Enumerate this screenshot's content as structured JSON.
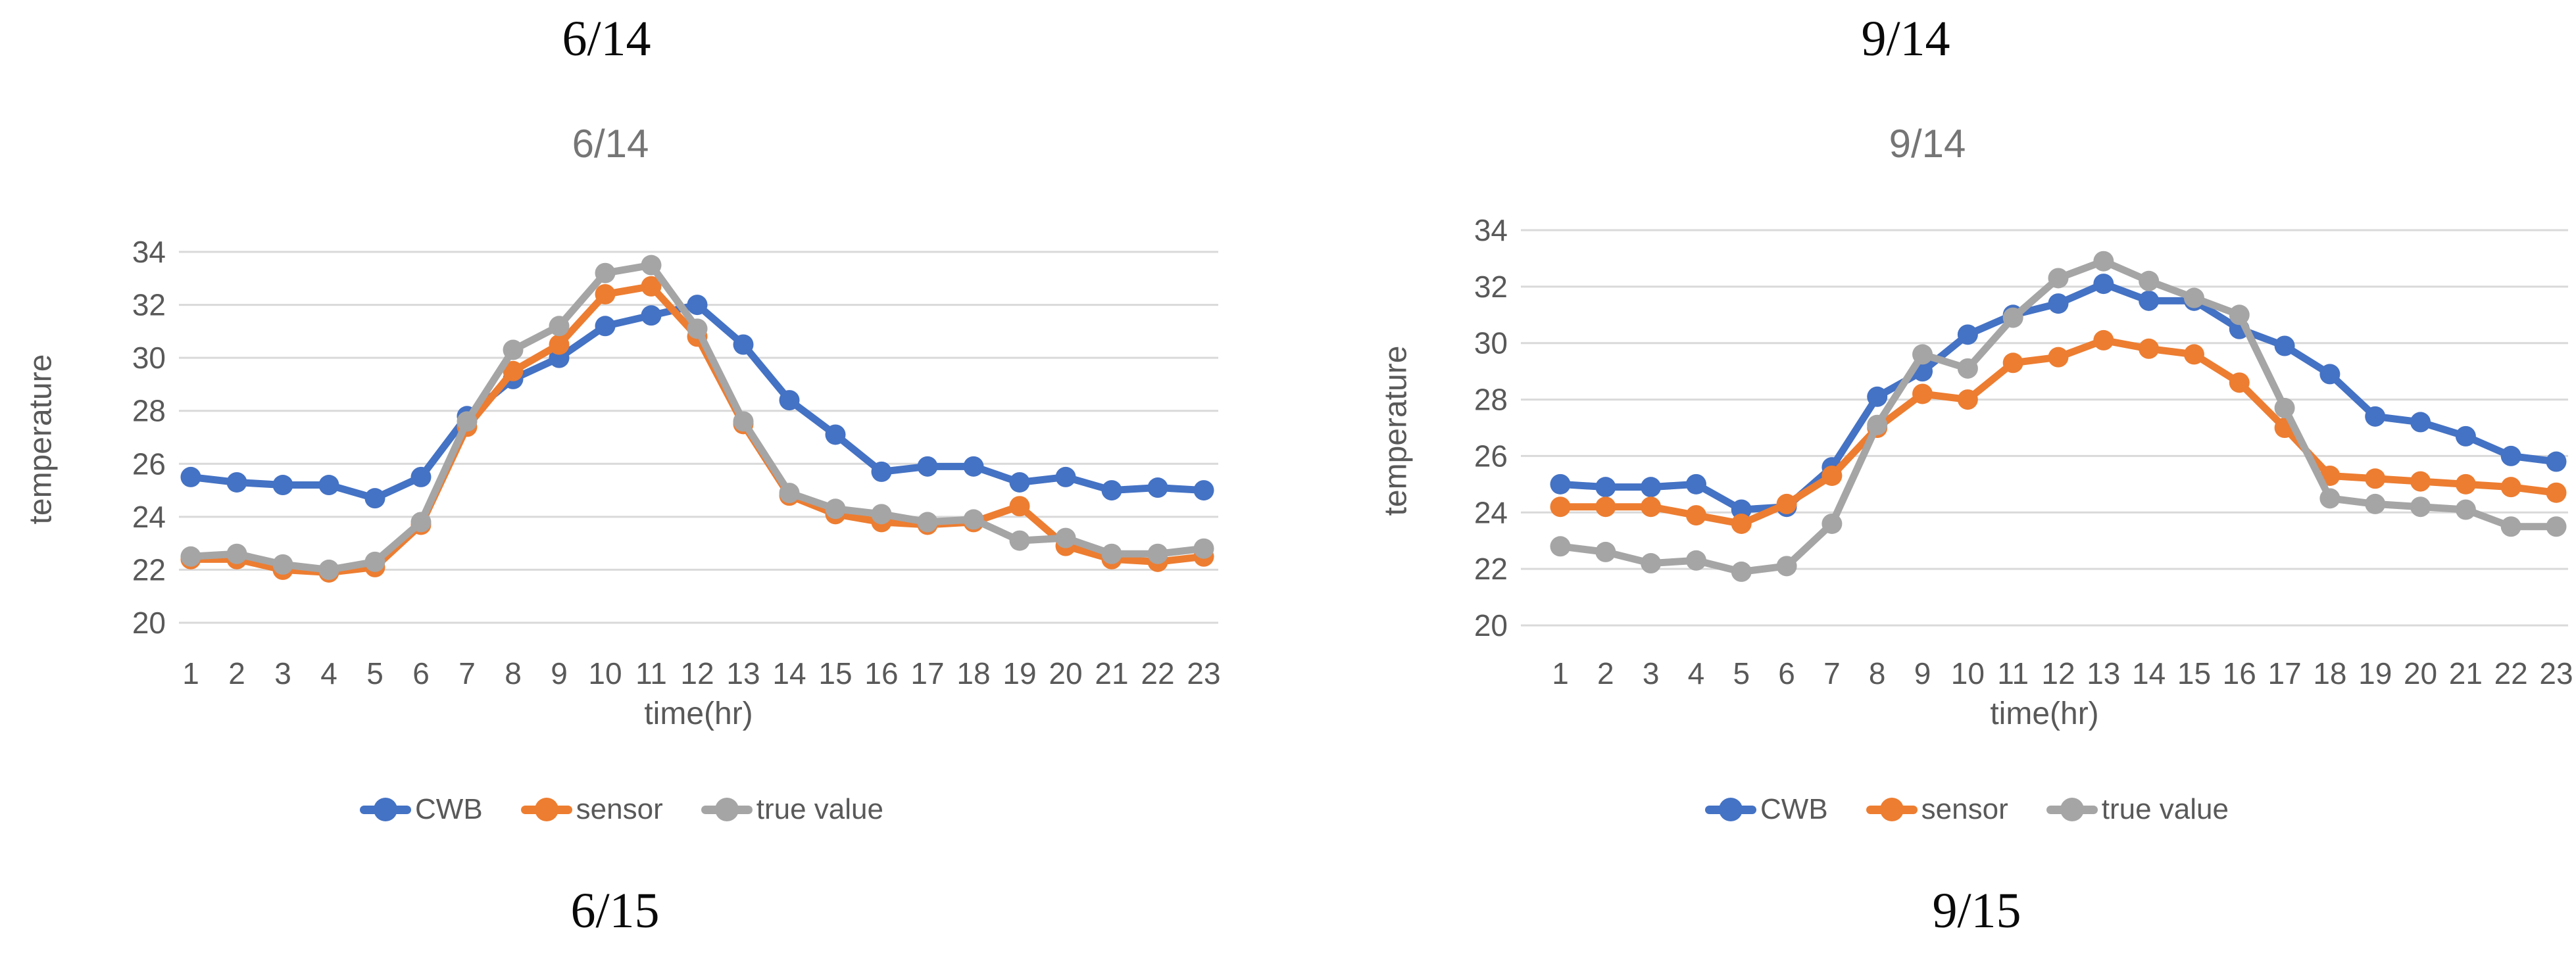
{
  "colors": {
    "cwb_blue": "#4472C4",
    "sensor_orange": "#ED7D31",
    "true_gray": "#A5A5A5",
    "gridline": "#D9D9D9",
    "tick_text": "#595959",
    "title_text": "#757575",
    "caption_text": "#0a0a0a"
  },
  "chart_data": [
    {
      "type": "line",
      "caption_top": "6/14",
      "title": "6/14",
      "xlabel": "time(hr)",
      "ylabel": "temperature",
      "caption_bottom": "6/15",
      "ylim": [
        20,
        34
      ],
      "yticks": [
        20,
        22,
        24,
        26,
        28,
        30,
        32,
        34
      ],
      "grid": true,
      "legend_position": "bottom",
      "x": [
        "1",
        "2",
        "3",
        "4",
        "5",
        "6",
        "7",
        "8",
        "9",
        "10",
        "11",
        "12",
        "13",
        "14",
        "15",
        "16",
        "17",
        "18",
        "19",
        "20",
        "21",
        "22",
        "23"
      ],
      "series": [
        {
          "name": "CWB",
          "color": "#4472C4",
          "values": [
            25.5,
            25.3,
            25.2,
            25.2,
            24.7,
            25.5,
            27.8,
            29.2,
            30.0,
            31.2,
            31.6,
            32.0,
            30.5,
            28.4,
            27.1,
            25.7,
            25.9,
            25.9,
            25.3,
            25.5,
            25.0,
            25.1,
            25.0
          ]
        },
        {
          "name": "sensor",
          "color": "#ED7D31",
          "values": [
            22.4,
            22.4,
            22.0,
            21.9,
            22.1,
            23.7,
            27.4,
            29.5,
            30.5,
            32.4,
            32.7,
            30.8,
            27.5,
            24.8,
            24.1,
            23.8,
            23.7,
            23.8,
            24.4,
            22.9,
            22.4,
            22.3,
            22.5
          ]
        },
        {
          "name": "true value",
          "color": "#A5A5A5",
          "values": [
            22.5,
            22.6,
            22.2,
            22.0,
            22.3,
            23.8,
            27.6,
            30.3,
            31.2,
            33.2,
            33.5,
            31.1,
            27.6,
            24.9,
            24.3,
            24.1,
            23.8,
            23.9,
            23.1,
            23.2,
            22.6,
            22.6,
            22.8
          ]
        }
      ]
    },
    {
      "type": "line",
      "caption_top": "9/14",
      "title": "9/14",
      "xlabel": "time(hr)",
      "ylabel": "temperature",
      "caption_bottom": "9/15",
      "ylim": [
        20,
        34
      ],
      "yticks": [
        20,
        22,
        24,
        26,
        28,
        30,
        32,
        34
      ],
      "grid": true,
      "legend_position": "bottom",
      "x": [
        "1",
        "2",
        "3",
        "4",
        "5",
        "6",
        "7",
        "8",
        "9",
        "10",
        "11",
        "12",
        "13",
        "14",
        "15",
        "16",
        "17",
        "18",
        "19",
        "20",
        "21",
        "22",
        "23"
      ],
      "series": [
        {
          "name": "CWB",
          "color": "#4472C4",
          "values": [
            25.0,
            24.9,
            24.9,
            25.0,
            24.1,
            24.2,
            25.6,
            28.1,
            29.0,
            30.3,
            31.0,
            31.4,
            32.1,
            31.5,
            31.5,
            30.5,
            29.9,
            28.9,
            27.4,
            27.2,
            26.7,
            26.0,
            25.8
          ]
        },
        {
          "name": "sensor",
          "color": "#ED7D31",
          "values": [
            24.2,
            24.2,
            24.2,
            23.9,
            23.6,
            24.3,
            25.3,
            27.0,
            28.2,
            28.0,
            29.3,
            29.5,
            30.1,
            29.8,
            29.6,
            28.6,
            27.0,
            25.3,
            25.2,
            25.1,
            25.0,
            24.9,
            24.7
          ]
        },
        {
          "name": "true value",
          "color": "#A5A5A5",
          "values": [
            22.8,
            22.6,
            22.2,
            22.3,
            21.9,
            22.1,
            23.6,
            27.1,
            29.6,
            29.1,
            30.9,
            32.3,
            32.9,
            32.2,
            31.6,
            31.0,
            27.7,
            24.5,
            24.3,
            24.2,
            24.1,
            23.5,
            23.5
          ]
        }
      ]
    }
  ]
}
